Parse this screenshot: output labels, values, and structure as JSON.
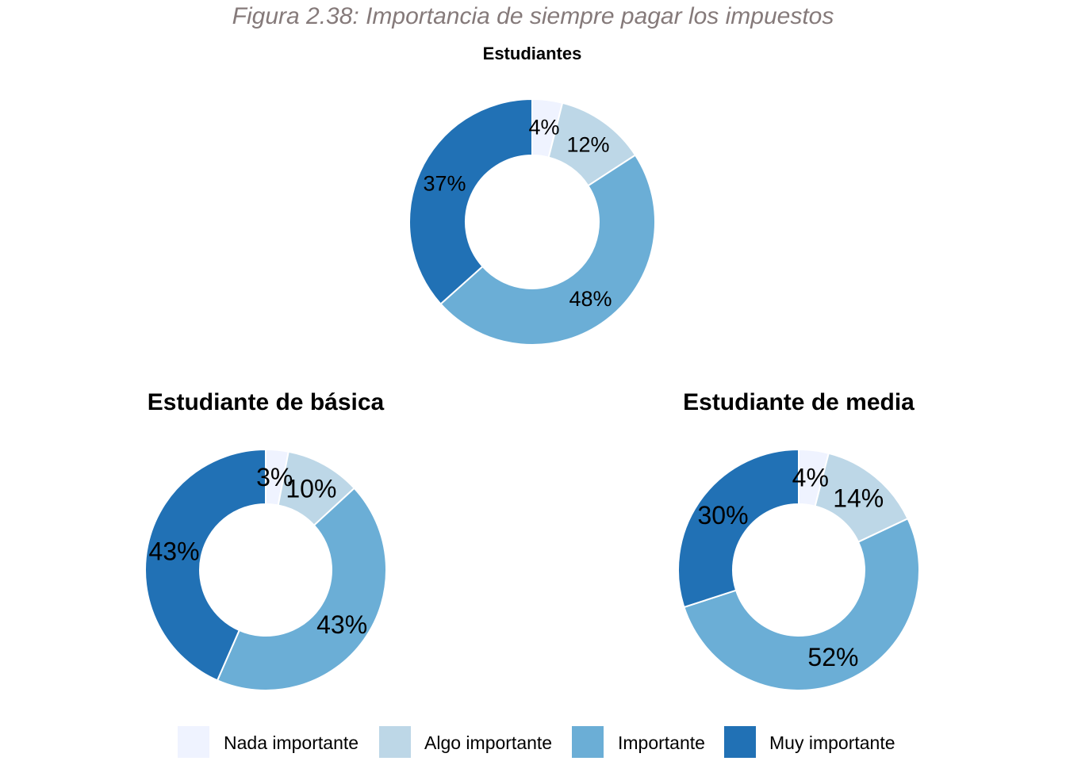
{
  "figure_title": "Figura 2.38: Importancia de siempre pagar los impuestos",
  "legend": [
    {
      "label": "Nada importante",
      "color": "#eff3ff"
    },
    {
      "label": "Algo importante",
      "color": "#bdd7e7"
    },
    {
      "label": "Importante",
      "color": "#6baed6"
    },
    {
      "label": "Muy importante",
      "color": "#2171b5"
    }
  ],
  "chart_data": [
    {
      "type": "pie",
      "title": "Estudiantes",
      "categories": [
        "Nada importante",
        "Algo importante",
        "Importante",
        "Muy importante"
      ],
      "values": [
        4,
        12,
        48,
        37
      ],
      "labels": [
        "4%",
        "12%",
        "48%",
        "37%"
      ]
    },
    {
      "type": "pie",
      "title": "Estudiante de básica",
      "categories": [
        "Nada importante",
        "Algo importante",
        "Importante",
        "Muy importante"
      ],
      "values": [
        3,
        10,
        43,
        43
      ],
      "labels": [
        "3%",
        "10%",
        "43%",
        "43%"
      ]
    },
    {
      "type": "pie",
      "title": "Estudiante de media",
      "categories": [
        "Nada importante",
        "Algo importante",
        "Importante",
        "Muy importante"
      ],
      "values": [
        4,
        14,
        52,
        30
      ],
      "labels": [
        "4%",
        "14%",
        "52%",
        "30%"
      ]
    }
  ]
}
